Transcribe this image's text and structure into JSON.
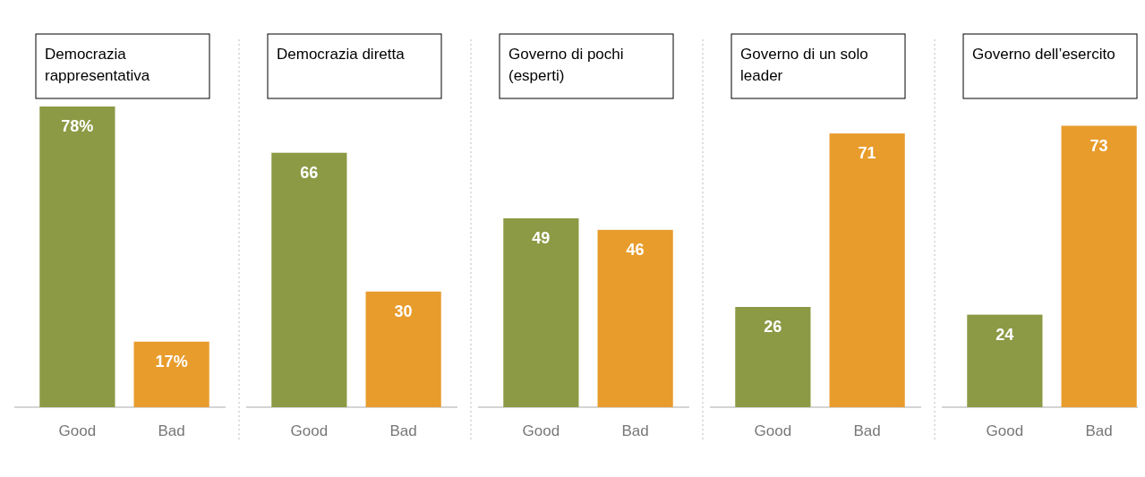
{
  "chart_data": [
    {
      "type": "bar",
      "title": "Democrazia rappresentativa",
      "categories": [
        "Good",
        "Bad"
      ],
      "values": [
        78,
        17
      ],
      "colors": [
        "#8c9a45",
        "#e89c2c"
      ],
      "value_labels": [
        "78%",
        "17%"
      ]
    },
    {
      "type": "bar",
      "title": "Democrazia diretta",
      "categories": [
        "Good",
        "Bad"
      ],
      "values": [
        66,
        30
      ],
      "colors": [
        "#8c9a45",
        "#e89c2c"
      ],
      "data_labels": true
    },
    {
      "type": "bar",
      "title": "Governo di pochi (esperti)",
      "categories": [
        "Good",
        "Bad"
      ],
      "values": [
        49,
        46
      ],
      "colors": [
        "#8c9a45",
        "#e89c2c"
      ],
      "data_labels": true
    },
    {
      "type": "bar",
      "title": "Governo di un solo leader",
      "categories": [
        "Good",
        "Bad"
      ],
      "values": [
        26,
        71
      ],
      "colors": [
        "#8c9a45",
        "#e89c2c"
      ],
      "data_labels": true
    },
    {
      "type": "bar",
      "title": "Governo dell’esercito",
      "categories": [
        "Good",
        "Bad"
      ],
      "values": [
        24,
        73
      ],
      "colors": [
        "#8c9a45",
        "#e89c2c"
      ],
      "data_labels": true
    }
  ]
}
